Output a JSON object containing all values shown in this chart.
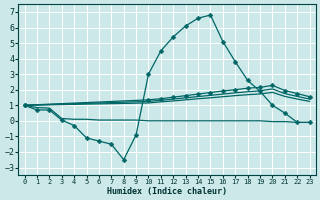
{
  "bg_color": "#cce8e8",
  "grid_color": "#ffffff",
  "line_color": "#006666",
  "xlabel": "Humidex (Indice chaleur)",
  "xlim": [
    -0.5,
    23.5
  ],
  "ylim": [
    -3.5,
    7.5
  ],
  "xticks": [
    0,
    1,
    2,
    3,
    4,
    5,
    6,
    7,
    8,
    9,
    10,
    11,
    12,
    13,
    14,
    15,
    16,
    17,
    18,
    19,
    20,
    21,
    22,
    23
  ],
  "yticks": [
    -3,
    -2,
    -1,
    0,
    1,
    2,
    3,
    4,
    5,
    6,
    7
  ],
  "curve_x": [
    0,
    1,
    2,
    3,
    4,
    5,
    6,
    7,
    8,
    9,
    10,
    11,
    12,
    13,
    14,
    15,
    16,
    17,
    18,
    19,
    20,
    21,
    22,
    23
  ],
  "curve_y": [
    1.0,
    0.7,
    0.7,
    0.05,
    -0.3,
    -1.1,
    -1.3,
    -1.5,
    -2.5,
    -0.9,
    3.0,
    4.5,
    5.4,
    6.1,
    6.6,
    6.8,
    5.1,
    3.8,
    2.6,
    1.9,
    1.0,
    0.5,
    -0.1,
    -0.1
  ],
  "flat_x": [
    0,
    1,
    2,
    3,
    4,
    5,
    6,
    7,
    8,
    9,
    10,
    11,
    12,
    13,
    14,
    15,
    16,
    17,
    18,
    19,
    20,
    21,
    22,
    23
  ],
  "flat_y": [
    1.0,
    0.85,
    0.82,
    0.15,
    0.1,
    0.1,
    0.05,
    0.05,
    0.05,
    0.05,
    0.0,
    0.0,
    0.0,
    0.0,
    0.0,
    0.0,
    0.0,
    0.0,
    0.0,
    0.0,
    -0.05,
    -0.05,
    -0.1,
    -0.1
  ],
  "line_top_x": [
    0,
    10,
    11,
    12,
    13,
    14,
    15,
    16,
    17,
    18,
    19,
    20,
    21,
    22,
    23
  ],
  "line_top_y": [
    1.0,
    1.35,
    1.42,
    1.52,
    1.62,
    1.72,
    1.82,
    1.92,
    2.0,
    2.1,
    2.15,
    2.28,
    1.95,
    1.75,
    1.55
  ],
  "line_mid_x": [
    0,
    10,
    11,
    12,
    13,
    14,
    15,
    16,
    17,
    18,
    19,
    20,
    21,
    22,
    23
  ],
  "line_mid_y": [
    1.0,
    1.25,
    1.32,
    1.4,
    1.48,
    1.56,
    1.64,
    1.72,
    1.8,
    1.87,
    1.93,
    2.05,
    1.75,
    1.57,
    1.4
  ],
  "line_bot_x": [
    0,
    10,
    11,
    12,
    13,
    14,
    15,
    16,
    17,
    18,
    19,
    20,
    21,
    22,
    23
  ],
  "line_bot_y": [
    1.0,
    1.15,
    1.22,
    1.28,
    1.35,
    1.42,
    1.48,
    1.55,
    1.62,
    1.68,
    1.73,
    1.83,
    1.57,
    1.4,
    1.25
  ],
  "lw": 0.9,
  "ms": 2.5
}
